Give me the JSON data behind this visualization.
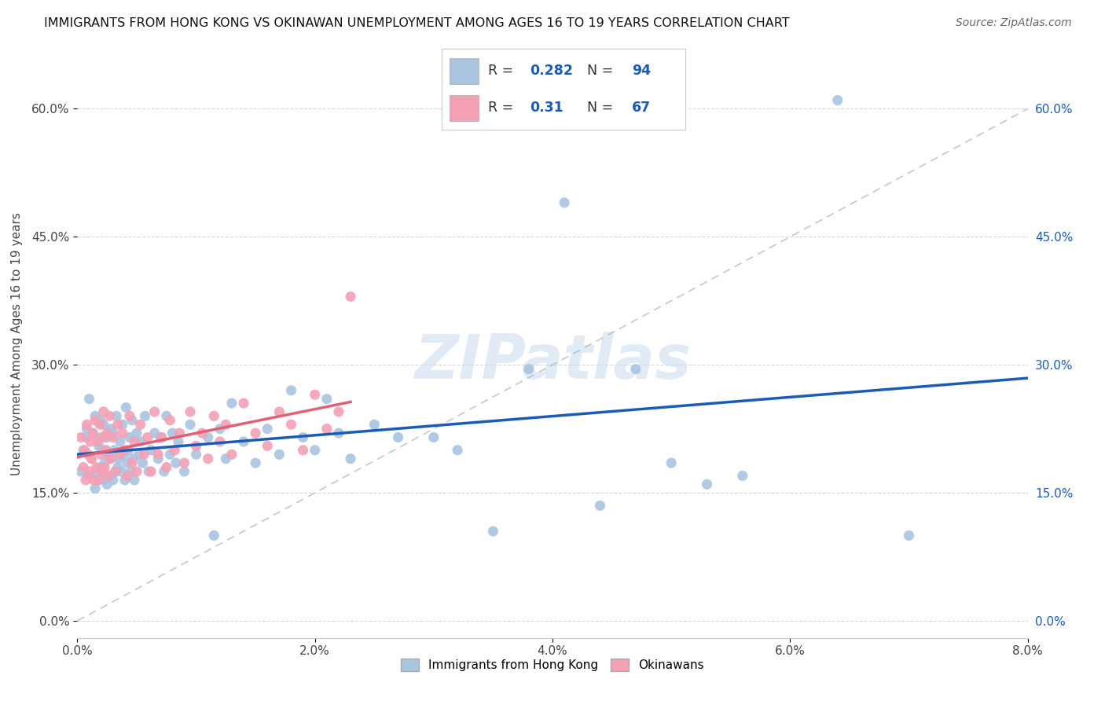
{
  "title": "IMMIGRANTS FROM HONG KONG VS OKINAWAN UNEMPLOYMENT AMONG AGES 16 TO 19 YEARS CORRELATION CHART",
  "source": "Source: ZipAtlas.com",
  "xlabel_ticks": [
    "0.0%",
    "2.0%",
    "4.0%",
    "6.0%",
    "8.0%"
  ],
  "xlabel_vals": [
    0.0,
    0.02,
    0.04,
    0.06,
    0.08
  ],
  "ylabel_ticks": [
    "0.0%",
    "15.0%",
    "30.0%",
    "45.0%",
    "60.0%"
  ],
  "ylabel_vals": [
    0.0,
    0.15,
    0.3,
    0.45,
    0.6
  ],
  "xlim": [
    0.0,
    0.08
  ],
  "ylim": [
    -0.02,
    0.67
  ],
  "hk_R": 0.282,
  "hk_N": 94,
  "ok_R": 0.31,
  "ok_N": 67,
  "watermark": "ZIPatlas",
  "hk_color": "#aac4e0",
  "ok_color": "#f4a0b5",
  "hk_line_color": "#1a5cb5",
  "ok_line_color": "#e06075",
  "hk_scatter_x": [
    0.0003,
    0.0005,
    0.0007,
    0.0008,
    0.001,
    0.001,
    0.0012,
    0.0013,
    0.0015,
    0.0015,
    0.0017,
    0.0018,
    0.0019,
    0.002,
    0.002,
    0.0021,
    0.0022,
    0.0022,
    0.0023,
    0.0024,
    0.0025,
    0.0025,
    0.0026,
    0.0027,
    0.0028,
    0.0028,
    0.003,
    0.003,
    0.0031,
    0.0032,
    0.0033,
    0.0034,
    0.0035,
    0.0036,
    0.0037,
    0.0038,
    0.0039,
    0.004,
    0.0041,
    0.0042,
    0.0043,
    0.0044,
    0.0045,
    0.0046,
    0.0047,
    0.0048,
    0.005,
    0.0052,
    0.0053,
    0.0055,
    0.0057,
    0.006,
    0.0062,
    0.0065,
    0.0068,
    0.007,
    0.0073,
    0.0075,
    0.0078,
    0.008,
    0.0083,
    0.0085,
    0.009,
    0.0095,
    0.01,
    0.011,
    0.0115,
    0.012,
    0.0125,
    0.013,
    0.014,
    0.015,
    0.016,
    0.017,
    0.018,
    0.019,
    0.02,
    0.021,
    0.022,
    0.023,
    0.025,
    0.027,
    0.03,
    0.032,
    0.035,
    0.038,
    0.041,
    0.044,
    0.047,
    0.05,
    0.053,
    0.056,
    0.064,
    0.07
  ],
  "hk_scatter_y": [
    0.175,
    0.2,
    0.215,
    0.225,
    0.17,
    0.26,
    0.19,
    0.22,
    0.155,
    0.24,
    0.175,
    0.205,
    0.235,
    0.18,
    0.215,
    0.2,
    0.165,
    0.23,
    0.185,
    0.2,
    0.16,
    0.215,
    0.195,
    0.17,
    0.225,
    0.19,
    0.165,
    0.22,
    0.2,
    0.175,
    0.24,
    0.18,
    0.19,
    0.21,
    0.175,
    0.23,
    0.195,
    0.165,
    0.25,
    0.185,
    0.2,
    0.215,
    0.175,
    0.235,
    0.19,
    0.165,
    0.22,
    0.195,
    0.21,
    0.185,
    0.24,
    0.175,
    0.2,
    0.22,
    0.19,
    0.215,
    0.175,
    0.24,
    0.195,
    0.22,
    0.185,
    0.21,
    0.175,
    0.23,
    0.195,
    0.215,
    0.1,
    0.225,
    0.19,
    0.255,
    0.21,
    0.185,
    0.225,
    0.195,
    0.27,
    0.215,
    0.2,
    0.26,
    0.22,
    0.19,
    0.23,
    0.215,
    0.215,
    0.2,
    0.105,
    0.295,
    0.49,
    0.135,
    0.295,
    0.185,
    0.16,
    0.17,
    0.61,
    0.1
  ],
  "ok_scatter_x": [
    0.0003,
    0.0005,
    0.0006,
    0.0007,
    0.0008,
    0.0009,
    0.001,
    0.0011,
    0.0012,
    0.0013,
    0.0014,
    0.0015,
    0.0016,
    0.0017,
    0.0018,
    0.0019,
    0.002,
    0.0021,
    0.0022,
    0.0022,
    0.0023,
    0.0024,
    0.0025,
    0.0026,
    0.0027,
    0.0028,
    0.003,
    0.0032,
    0.0034,
    0.0036,
    0.0038,
    0.004,
    0.0042,
    0.0044,
    0.0046,
    0.0048,
    0.005,
    0.0053,
    0.0056,
    0.0059,
    0.0062,
    0.0065,
    0.0068,
    0.0071,
    0.0075,
    0.0078,
    0.0082,
    0.0086,
    0.009,
    0.0095,
    0.01,
    0.0105,
    0.011,
    0.0115,
    0.012,
    0.0125,
    0.013,
    0.014,
    0.015,
    0.016,
    0.017,
    0.018,
    0.019,
    0.02,
    0.021,
    0.022,
    0.023
  ],
  "ok_scatter_y": [
    0.215,
    0.18,
    0.2,
    0.165,
    0.23,
    0.195,
    0.175,
    0.21,
    0.19,
    0.22,
    0.165,
    0.235,
    0.18,
    0.21,
    0.165,
    0.23,
    0.195,
    0.175,
    0.215,
    0.245,
    0.18,
    0.2,
    0.22,
    0.17,
    0.24,
    0.19,
    0.215,
    0.175,
    0.23,
    0.195,
    0.22,
    0.2,
    0.17,
    0.24,
    0.185,
    0.21,
    0.175,
    0.23,
    0.195,
    0.215,
    0.175,
    0.245,
    0.195,
    0.215,
    0.18,
    0.235,
    0.2,
    0.22,
    0.185,
    0.245,
    0.205,
    0.22,
    0.19,
    0.24,
    0.21,
    0.23,
    0.195,
    0.255,
    0.22,
    0.205,
    0.245,
    0.23,
    0.2,
    0.265,
    0.225,
    0.245,
    0.38
  ],
  "legend_label_hk": "Immigrants from Hong Kong",
  "legend_label_ok": "Okinawans",
  "ylabel": "Unemployment Among Ages 16 to 19 years",
  "background_color": "#ffffff",
  "grid_color": "#d0d0d0"
}
